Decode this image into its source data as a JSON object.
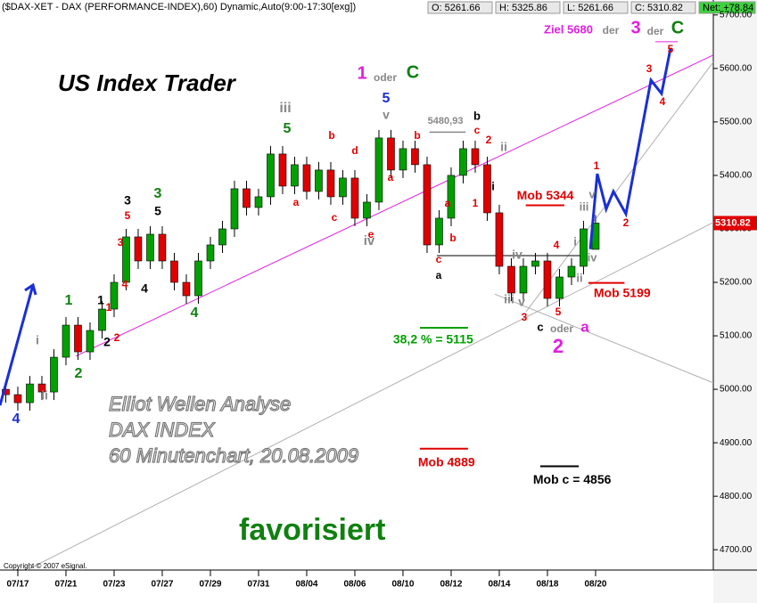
{
  "chart_data": {
    "type": "candlestick",
    "title": "($DAX-XET - DAX (PERFORMANCE-INDEX),60) Dynamic,Auto(9:00-17:30[exg])",
    "quote_box": [
      "O: 5261.66",
      "H: 5325.86",
      "L: 5261.66",
      "C: 5310.82"
    ],
    "net_box": "Net: +78.84",
    "up_color": "#00a000",
    "down_color": "#e00000",
    "xlim": [
      -0.74,
      28.89
    ],
    "ylim": [
      4662,
      5728
    ],
    "xticks": [
      {
        "value": 0,
        "label": "07/17"
      },
      {
        "value": 2,
        "label": "07/21"
      },
      {
        "value": 4,
        "label": "07/23"
      },
      {
        "value": 6,
        "label": "07/27"
      },
      {
        "value": 8,
        "label": "07/29"
      },
      {
        "value": 10,
        "label": "07/31"
      },
      {
        "value": 12,
        "label": "08/04"
      },
      {
        "value": 14,
        "label": "08/06"
      },
      {
        "value": 16,
        "label": "08/10"
      },
      {
        "value": 18,
        "label": "08/12"
      },
      {
        "value": 20,
        "label": "08/14"
      },
      {
        "value": 22,
        "label": "08/18"
      },
      {
        "value": 24,
        "label": "08/20"
      }
    ],
    "yticks": [
      {
        "value": 4700,
        "label": "4700.00"
      },
      {
        "value": 4800,
        "label": "4800.00"
      },
      {
        "value": 4900,
        "label": "4900.00"
      },
      {
        "value": 5000,
        "label": "5000.00"
      },
      {
        "value": 5100,
        "label": "5100.00"
      },
      {
        "value": 5200,
        "label": "5200.00"
      },
      {
        "value": 5300,
        "label": "5300.00"
      },
      {
        "value": 5400,
        "label": "5400.00"
      },
      {
        "value": 5500,
        "label": "5500.00"
      },
      {
        "value": 5600,
        "label": "5600.00"
      },
      {
        "value": 5700,
        "label": "5700.00"
      }
    ],
    "x": [
      -0.5,
      0,
      0.5,
      1,
      1.5,
      2,
      2.5,
      3,
      3.5,
      4,
      4.5,
      5,
      5.5,
      6,
      6.5,
      7,
      7.5,
      8,
      8.5,
      9,
      9.5,
      10,
      10.5,
      11,
      11.5,
      12,
      12.5,
      13,
      13.5,
      14,
      14.5,
      15,
      15.5,
      16,
      16.5,
      17,
      17.5,
      18,
      18.5,
      19,
      19.5,
      20,
      20.5,
      21,
      21.5,
      22,
      22.5,
      23,
      23.5,
      24
    ],
    "open": [
      5000,
      4990,
      4975,
      5010,
      4995,
      5060,
      5120,
      5070,
      5110,
      5150,
      5200,
      5285,
      5240,
      5290,
      5240,
      5200,
      5175,
      5240,
      5270,
      5300,
      5375,
      5340,
      5360,
      5440,
      5380,
      5420,
      5370,
      5410,
      5360,
      5395,
      5320,
      5350,
      5470,
      5410,
      5450,
      5420,
      5270,
      5320,
      5400,
      5450,
      5420,
      5330,
      5230,
      5180,
      5230,
      5240,
      5170,
      5210,
      5230,
      5261.66
    ],
    "high": [
      5015,
      5005,
      5025,
      5025,
      5075,
      5135,
      5135,
      5125,
      5165,
      5215,
      5300,
      5300,
      5305,
      5305,
      5255,
      5215,
      5255,
      5285,
      5315,
      5390,
      5390,
      5375,
      5455,
      5455,
      5435,
      5435,
      5425,
      5425,
      5410,
      5410,
      5365,
      5485,
      5485,
      5465,
      5465,
      5435,
      5335,
      5415,
      5465,
      5465,
      5435,
      5345,
      5245,
      5245,
      5255,
      5255,
      5225,
      5245,
      5315,
      5325.86
    ],
    "low": [
      4975,
      4960,
      4960,
      4980,
      4980,
      5045,
      5055,
      5055,
      5095,
      5135,
      5185,
      5225,
      5225,
      5225,
      5185,
      5160,
      5160,
      5225,
      5255,
      5285,
      5325,
      5325,
      5345,
      5365,
      5365,
      5355,
      5355,
      5345,
      5345,
      5305,
      5305,
      5335,
      5395,
      5395,
      5405,
      5255,
      5255,
      5305,
      5385,
      5405,
      5315,
      5215,
      5165,
      5165,
      5215,
      5155,
      5155,
      5195,
      5215,
      5261.66
    ],
    "close": [
      4990,
      4975,
      5010,
      4995,
      5060,
      5120,
      5070,
      5110,
      5150,
      5200,
      5285,
      5240,
      5290,
      5240,
      5200,
      5175,
      5240,
      5270,
      5300,
      5375,
      5340,
      5360,
      5440,
      5380,
      5420,
      5370,
      5410,
      5360,
      5395,
      5320,
      5350,
      5470,
      5410,
      5450,
      5420,
      5270,
      5320,
      5400,
      5450,
      5420,
      5330,
      5230,
      5180,
      5230,
      5240,
      5170,
      5210,
      5230,
      5300,
      5310.82
    ],
    "projection": {
      "color": "#1a2fd6",
      "x": [
        23.78,
        24.07,
        24.44,
        24.74,
        25.26,
        26.3,
        26.74,
        27.11
      ],
      "values": [
        5262,
        5403,
        5337,
        5370,
        5328,
        5578,
        5553,
        5637
      ]
    },
    "arrow": {
      "color": "#1a2fd6",
      "x": [
        -0.74,
        0.63
      ],
      "values": [
        4970,
        5195
      ]
    },
    "trendlines": [
      {
        "color": "#e020e0",
        "x": [
          2.41,
          28.89
        ],
        "values": [
          5062,
          5625
        ]
      },
      {
        "color": "#b0b0b0",
        "x": [
          0.37,
          28.89
        ],
        "values": [
          4662,
          5312
        ]
      },
      {
        "color": "#b0b0b0",
        "x": [
          19.81,
          28.89
        ],
        "values": [
          5178,
          5012
        ]
      },
      {
        "color": "#b0b0b0",
        "x": [
          21.11,
          28.89
        ],
        "values": [
          5145,
          5612
        ]
      },
      {
        "color": "#000000",
        "x": [
          17.41,
          23.52
        ],
        "values": [
          5250,
          5250
        ]
      },
      {
        "color": "#e020e0",
        "x": [
          26.48,
          27.41
        ],
        "values": [
          5650,
          5650
        ]
      }
    ],
    "levels": [
      {
        "label": "5480,93",
        "value": 5480.93,
        "x": [
          17.1,
          18.6
        ],
        "color": "#888888"
      },
      {
        "label": "Mob 5344",
        "value": 5344,
        "x": [
          21.1,
          22.7
        ],
        "color": "#e00000"
      },
      {
        "label": "Mob 5199",
        "value": 5199,
        "x": [
          23.7,
          25.2
        ],
        "color": "#e00000"
      },
      {
        "label": "38,2 % = 5115",
        "value": 5115,
        "x": [
          16.7,
          18.7
        ],
        "color": "#00a000"
      },
      {
        "label": "Mob 4889",
        "value": 4889,
        "x": [
          16.7,
          18.7
        ],
        "color": "#e00000"
      },
      {
        "label": "Mob c = 4856",
        "value": 4856,
        "x": [
          21.7,
          23.3
        ],
        "color": "#000000"
      }
    ],
    "texts": [
      "US Index Trader",
      "Elliot Wellen Analyse",
      "DAX INDEX",
      "60 Minutenchart, 20.08.2009",
      "favorisiert",
      "Copyright © 2007 eSignal.",
      "Ziel 5680"
    ],
    "wave_labels": [
      {
        "text": "4",
        "color": "#1a2fd6"
      },
      {
        "text": "i",
        "color": "#888"
      },
      {
        "text": "ii",
        "color": "#888"
      },
      {
        "text": "1",
        "color": "#108010"
      },
      {
        "text": "2",
        "color": "#108010"
      },
      {
        "text": "1",
        "color": "#000"
      },
      {
        "text": "1",
        "color": "#e00000"
      },
      {
        "text": "2",
        "color": "#e00000"
      },
      {
        "text": "2",
        "color": "#000"
      },
      {
        "text": "3",
        "color": "#e00000"
      },
      {
        "text": "4",
        "color": "#e00000"
      },
      {
        "text": "3",
        "color": "#000"
      },
      {
        "text": "5",
        "color": "#e00000"
      },
      {
        "text": "4",
        "color": "#000"
      },
      {
        "text": "3",
        "color": "#108010"
      },
      {
        "text": "5",
        "color": "#000"
      },
      {
        "text": "4",
        "color": "#108010"
      },
      {
        "text": "iii",
        "color": "#888"
      },
      {
        "text": "5",
        "color": "#108010"
      },
      {
        "text": "a",
        "color": "#e00000"
      },
      {
        "text": "b",
        "color": "#e00000"
      },
      {
        "text": "c",
        "color": "#e00000"
      },
      {
        "text": "d",
        "color": "#e00000"
      },
      {
        "text": "e",
        "color": "#e00000"
      },
      {
        "text": "iv",
        "color": "#888"
      },
      {
        "text": "1",
        "color": "#e020e0"
      },
      {
        "text": "oder",
        "color": "#888"
      },
      {
        "text": "C",
        "color": "#108010"
      },
      {
        "text": "5",
        "color": "#1a2fd6"
      },
      {
        "text": "v",
        "color": "#888"
      },
      {
        "text": "a",
        "color": "#e00000"
      },
      {
        "text": "b",
        "color": "#e00000"
      },
      {
        "text": "b",
        "color": "#000"
      },
      {
        "text": "c",
        "color": "#e00000"
      },
      {
        "text": "2",
        "color": "#e00000"
      },
      {
        "text": "ii",
        "color": "#888"
      },
      {
        "text": "i",
        "color": "#000"
      },
      {
        "text": "1",
        "color": "#e00000"
      },
      {
        "text": "a",
        "color": "#e00000"
      },
      {
        "text": "b",
        "color": "#e00000"
      },
      {
        "text": "c",
        "color": "#e00000"
      },
      {
        "text": "a",
        "color": "#000"
      },
      {
        "text": "iv",
        "color": "#888"
      },
      {
        "text": "iii",
        "color": "#888"
      },
      {
        "text": "v",
        "color": "#888"
      },
      {
        "text": "3",
        "color": "#e00000"
      },
      {
        "text": "4",
        "color": "#e00000"
      },
      {
        "text": "5",
        "color": "#e00000"
      },
      {
        "text": "c",
        "color": "#000"
      },
      {
        "text": "oder",
        "color": "#888"
      },
      {
        "text": "a",
        "color": "#e020e0"
      },
      {
        "text": "2",
        "color": "#e020e0"
      },
      {
        "text": "i",
        "color": "#888"
      },
      {
        "text": "ii",
        "color": "#888"
      },
      {
        "text": "iii",
        "color": "#888"
      },
      {
        "text": "v",
        "color": "#888"
      },
      {
        "text": "1",
        "color": "#e00000"
      },
      {
        "text": "iv",
        "color": "#888"
      },
      {
        "text": "2",
        "color": "#e00000"
      },
      {
        "text": "3",
        "color": "#e00000"
      },
      {
        "text": "4",
        "color": "#e00000"
      },
      {
        "text": "5",
        "color": "#e00000"
      },
      {
        "text": "der",
        "color": "#888"
      },
      {
        "text": "3",
        "color": "#e020e0"
      },
      {
        "text": "der",
        "color": "#888"
      },
      {
        "text": "C",
        "color": "#108010"
      }
    ]
  }
}
